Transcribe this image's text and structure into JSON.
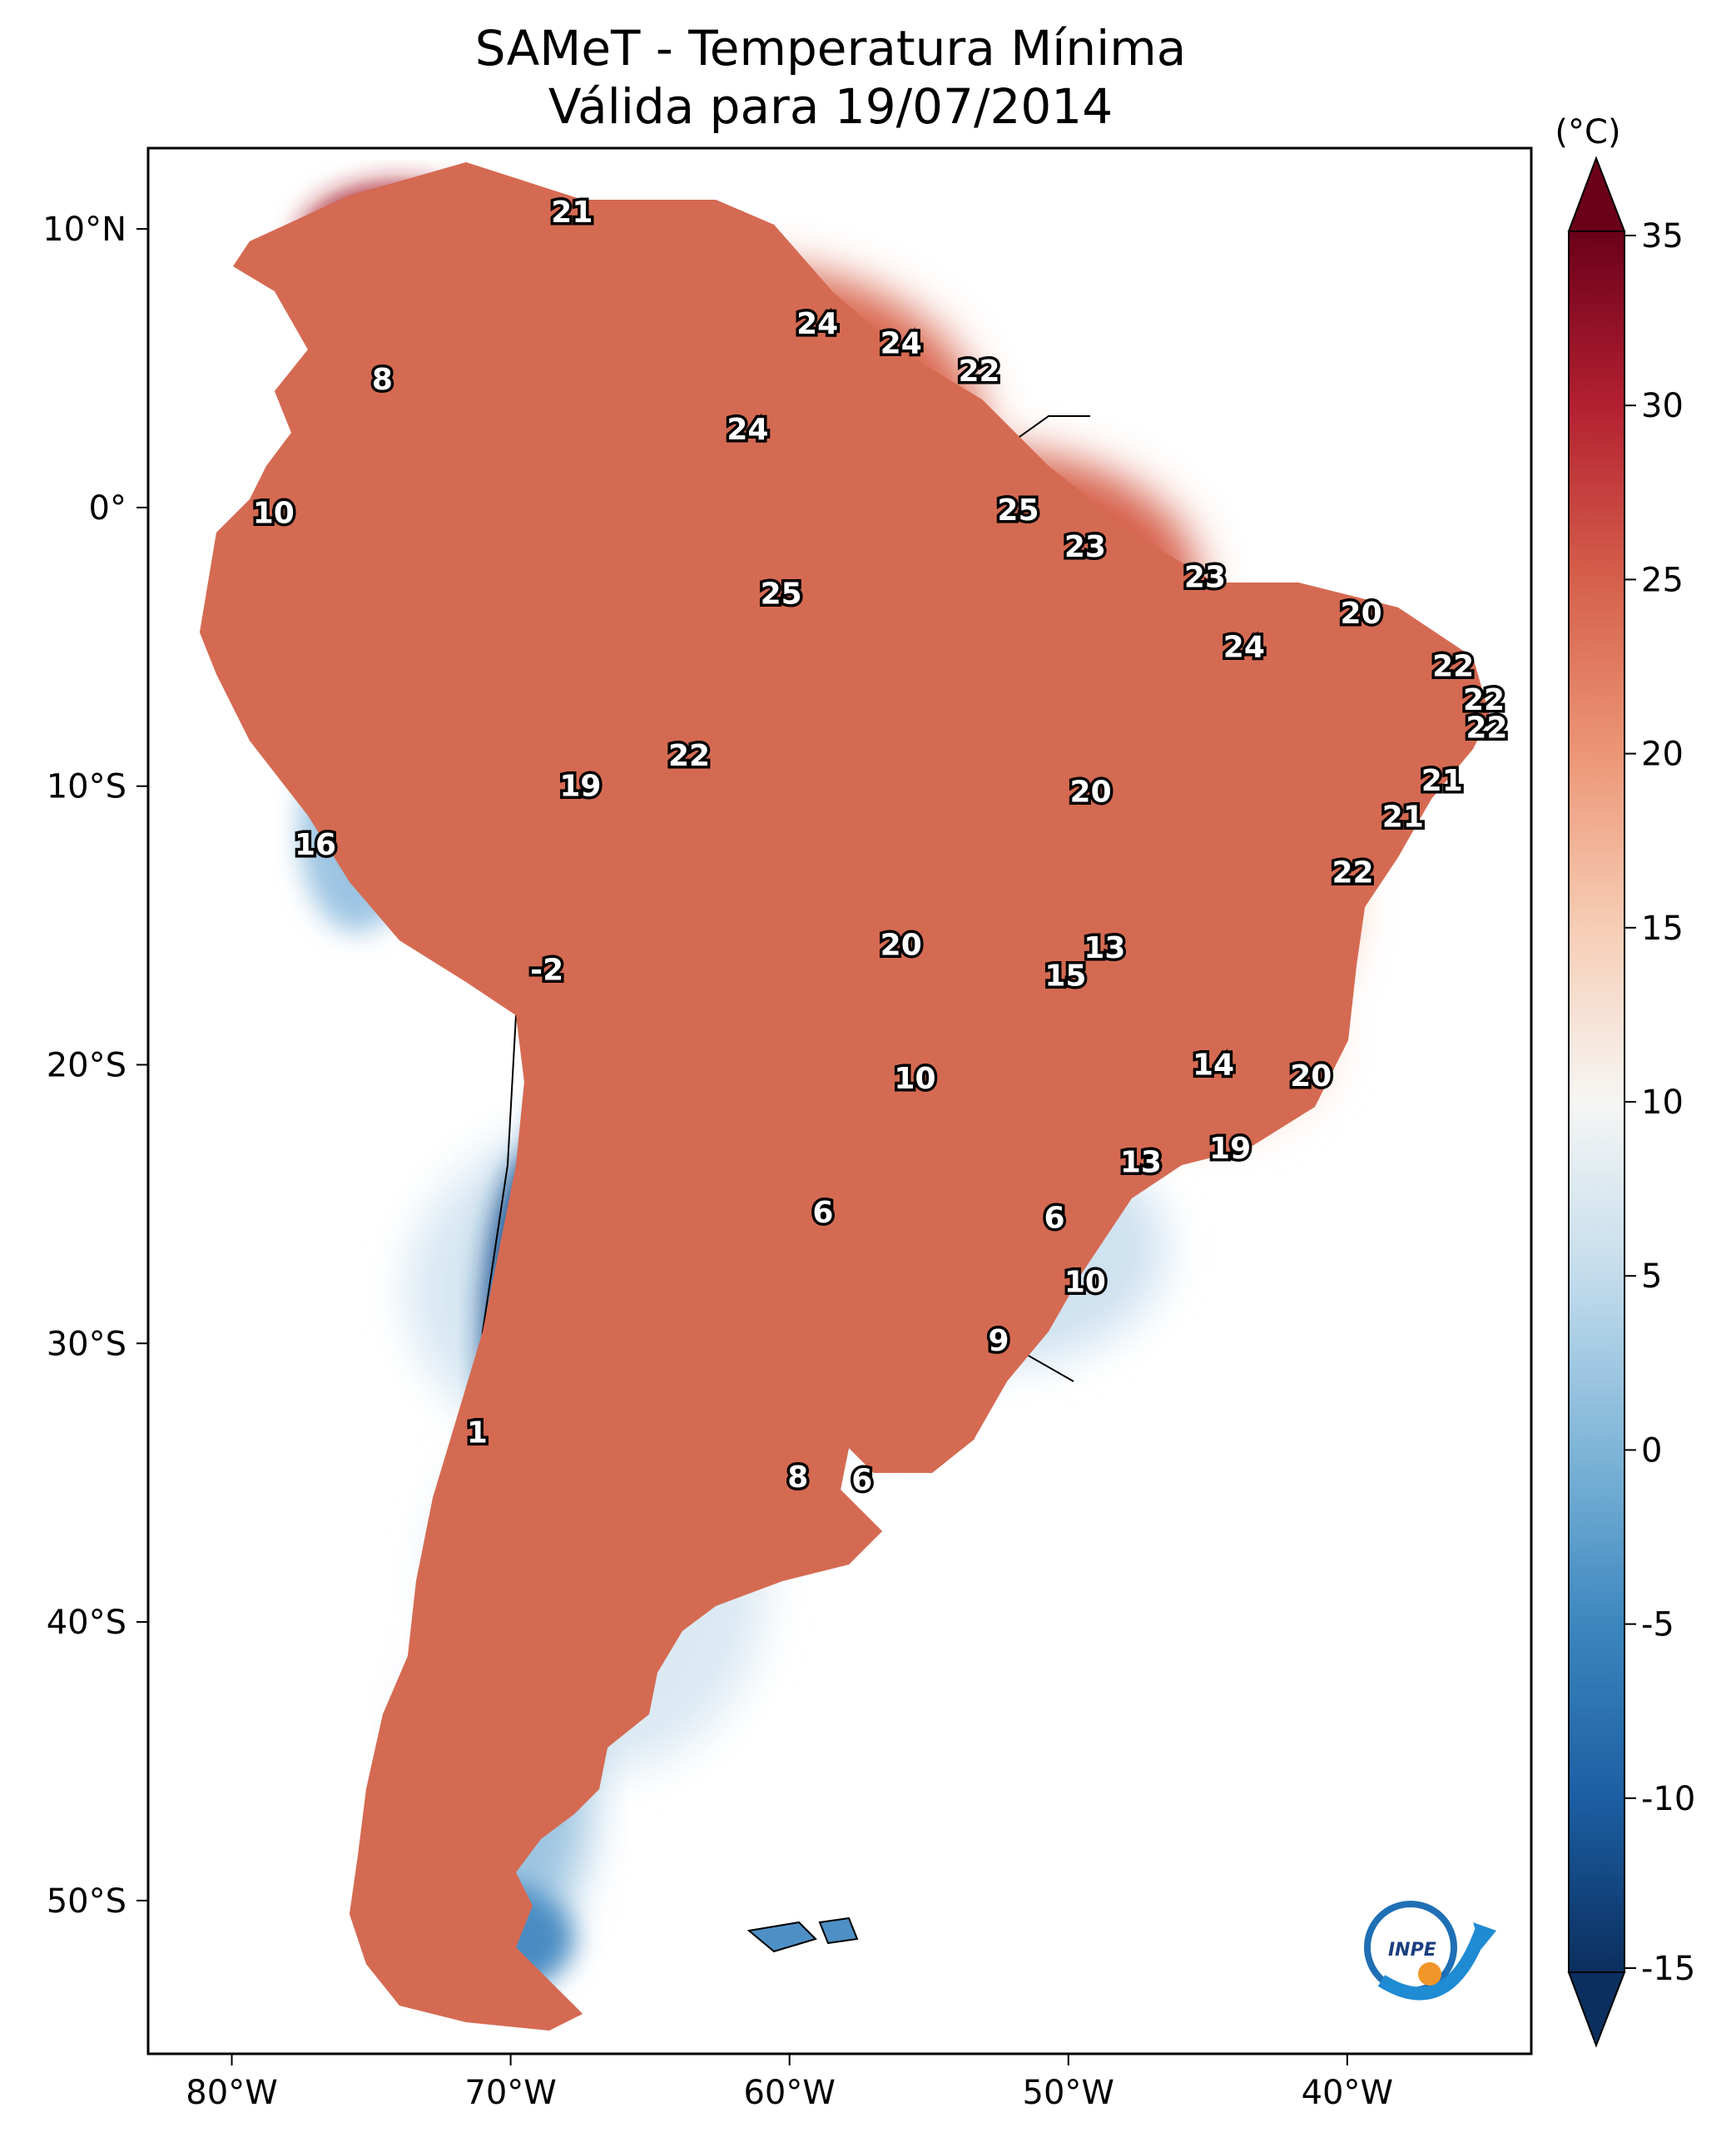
{
  "title": {
    "line1": "SAMeT - Temperatura Mínima",
    "line2": "Válida para 19/07/2014"
  },
  "colorbar": {
    "unit": "(°C)",
    "min": -15,
    "max": 35,
    "ticks": [
      "35",
      "30",
      "25",
      "20",
      "15",
      "10",
      "5",
      "0",
      "-5",
      "-10",
      "-15"
    ],
    "tick_values": [
      35,
      30,
      25,
      20,
      15,
      10,
      5,
      0,
      -5,
      -10,
      -15
    ],
    "stops": [
      {
        "v": -15,
        "c": "#0b2f5e"
      },
      {
        "v": -10,
        "c": "#1c5ea3"
      },
      {
        "v": -5,
        "c": "#3c87bf"
      },
      {
        "v": 0,
        "c": "#7fb5d8"
      },
      {
        "v": 5,
        "c": "#c3dcec"
      },
      {
        "v": 10,
        "c": "#f6f6f4"
      },
      {
        "v": 15,
        "c": "#f6cdb5"
      },
      {
        "v": 20,
        "c": "#ec9676"
      },
      {
        "v": 25,
        "c": "#d5604b"
      },
      {
        "v": 30,
        "c": "#b32031"
      },
      {
        "v": 35,
        "c": "#6b0019"
      }
    ]
  },
  "axes": {
    "lat_ticks": [
      "10°N",
      "0°",
      "10°S",
      "20°S",
      "30°S",
      "40°S",
      "50°S"
    ],
    "lon_ticks": [
      "80°W",
      "70°W",
      "60°W",
      "50°W",
      "40°W"
    ]
  },
  "map_labels": [
    {
      "text": "21",
      "lon": -67.8,
      "lat": 10.6
    },
    {
      "text": "24",
      "lon": -59.0,
      "lat": 6.6
    },
    {
      "text": "24",
      "lon": -56.0,
      "lat": 5.9
    },
    {
      "text": "22",
      "lon": -53.2,
      "lat": 4.9
    },
    {
      "text": "8",
      "lon": -74.6,
      "lat": 4.6
    },
    {
      "text": "24",
      "lon": -61.5,
      "lat": 2.8
    },
    {
      "text": "10",
      "lon": -78.5,
      "lat": -0.2
    },
    {
      "text": "25",
      "lon": -51.8,
      "lat": -0.1
    },
    {
      "text": "23",
      "lon": -49.4,
      "lat": -1.4
    },
    {
      "text": "25",
      "lon": -60.3,
      "lat": -3.1
    },
    {
      "text": "23",
      "lon": -45.1,
      "lat": -2.5
    },
    {
      "text": "20",
      "lon": -39.5,
      "lat": -3.8
    },
    {
      "text": "24",
      "lon": -43.7,
      "lat": -5.0
    },
    {
      "text": "22",
      "lon": -36.2,
      "lat": -5.7
    },
    {
      "text": "22",
      "lon": -35.1,
      "lat": -6.9
    },
    {
      "text": "22",
      "lon": -35.0,
      "lat": -7.9
    },
    {
      "text": "22",
      "lon": -63.6,
      "lat": -8.9
    },
    {
      "text": "19",
      "lon": -67.5,
      "lat": -10.0
    },
    {
      "text": "20",
      "lon": -49.2,
      "lat": -10.2
    },
    {
      "text": "21",
      "lon": -36.6,
      "lat": -9.8
    },
    {
      "text": "21",
      "lon": -38.0,
      "lat": -11.1
    },
    {
      "text": "16",
      "lon": -77.0,
      "lat": -12.1
    },
    {
      "text": "22",
      "lon": -39.8,
      "lat": -13.1
    },
    {
      "text": "13",
      "lon": -48.7,
      "lat": -15.8
    },
    {
      "text": "20",
      "lon": -56.0,
      "lat": -15.7
    },
    {
      "text": "15",
      "lon": -50.1,
      "lat": -16.8
    },
    {
      "text": "-2",
      "lon": -68.7,
      "lat": -16.6
    },
    {
      "text": "14",
      "lon": -44.8,
      "lat": -20.0
    },
    {
      "text": "20",
      "lon": -41.3,
      "lat": -20.4
    },
    {
      "text": "10",
      "lon": -55.5,
      "lat": -20.5
    },
    {
      "text": "13",
      "lon": -47.4,
      "lat": -23.5
    },
    {
      "text": "19",
      "lon": -44.2,
      "lat": -23.0
    },
    {
      "text": "6",
      "lon": -58.8,
      "lat": -25.3
    },
    {
      "text": "6",
      "lon": -50.5,
      "lat": -25.5
    },
    {
      "text": "10",
      "lon": -49.4,
      "lat": -27.8
    },
    {
      "text": "9",
      "lon": -52.5,
      "lat": -29.9
    },
    {
      "text": "1",
      "lon": -71.2,
      "lat": -33.2
    },
    {
      "text": "8",
      "lon": -59.7,
      "lat": -34.8
    },
    {
      "text": "6",
      "lon": -57.4,
      "lat": -34.9
    }
  ],
  "logo": {
    "text": "INPE"
  },
  "colors": {
    "warm": "#d86a52",
    "hot": "#c0463a",
    "mild": "#efb39a",
    "cool": "#c8dff0",
    "cold": "#3f7fbf",
    "coldest": "#1b4f8c"
  }
}
